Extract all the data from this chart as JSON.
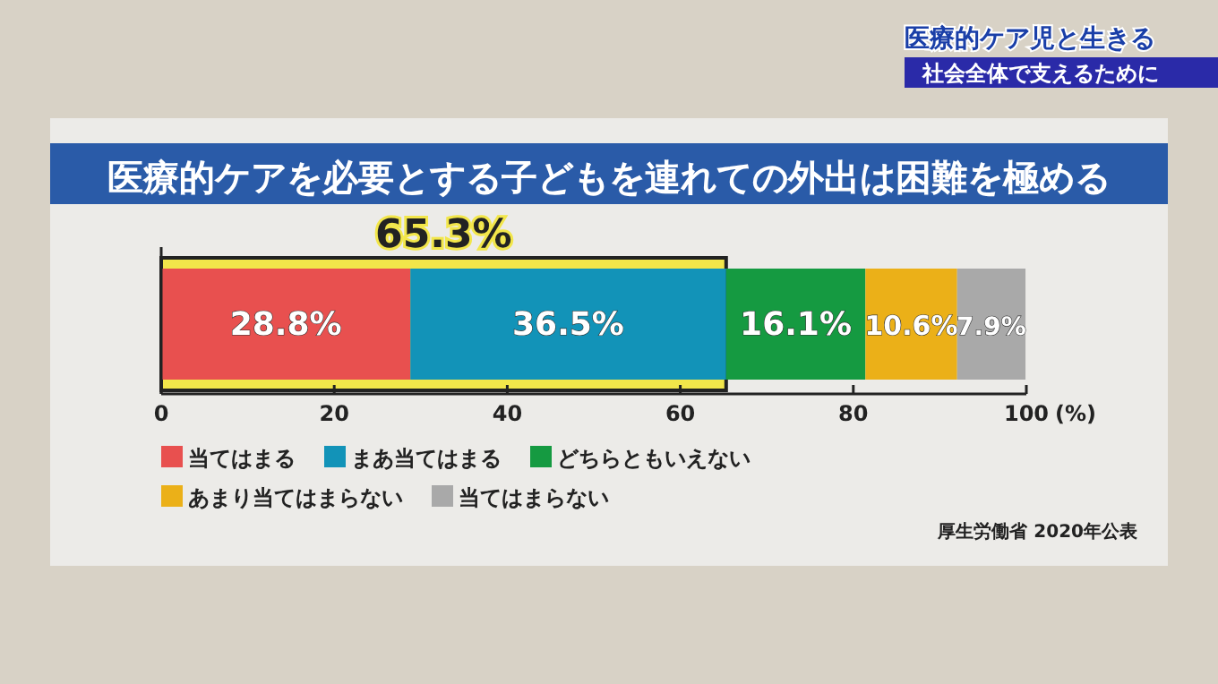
{
  "chart_data": {
    "type": "bar",
    "orientation": "horizontal",
    "stacked": true,
    "title": "医療的ケアを必要とする子どもを連れての外出は困難を極める",
    "categories": [
      null
    ],
    "series": [
      {
        "name": "当てはまる",
        "color": "#e8504f",
        "values": [
          28.8
        ],
        "value_labels": [
          "28.8%"
        ]
      },
      {
        "name": "まあ当てはまる",
        "color": "#1293b8",
        "values": [
          36.5
        ],
        "value_labels": [
          "36.5%"
        ]
      },
      {
        "name": "どちらともいえない",
        "color": "#159a41",
        "values": [
          16.1
        ],
        "value_labels": [
          "16.1%"
        ]
      },
      {
        "name": "あまり当てはまらない",
        "color": "#ebb018",
        "values": [
          10.6
        ],
        "value_labels": [
          "10.6%"
        ]
      },
      {
        "name": "当てはまらない",
        "color": "#a9a9a9",
        "values": [
          7.9
        ],
        "value_labels": [
          "7.9%"
        ]
      }
    ],
    "xlim": [
      0,
      100
    ],
    "xticks": [
      0,
      20,
      40,
      60,
      80,
      100
    ],
    "xlabel": "(%)",
    "legend": "bottom",
    "grid": false,
    "bands": [
      {
        "axis": "x",
        "from": 0,
        "to": 65.3,
        "label": "65.3%",
        "color": "#f2e64a"
      }
    ],
    "annotations": [
      "厚生労働省 2020年公表",
      "医療的ケア児と生きる",
      "社会全体で支えるために"
    ]
  }
}
